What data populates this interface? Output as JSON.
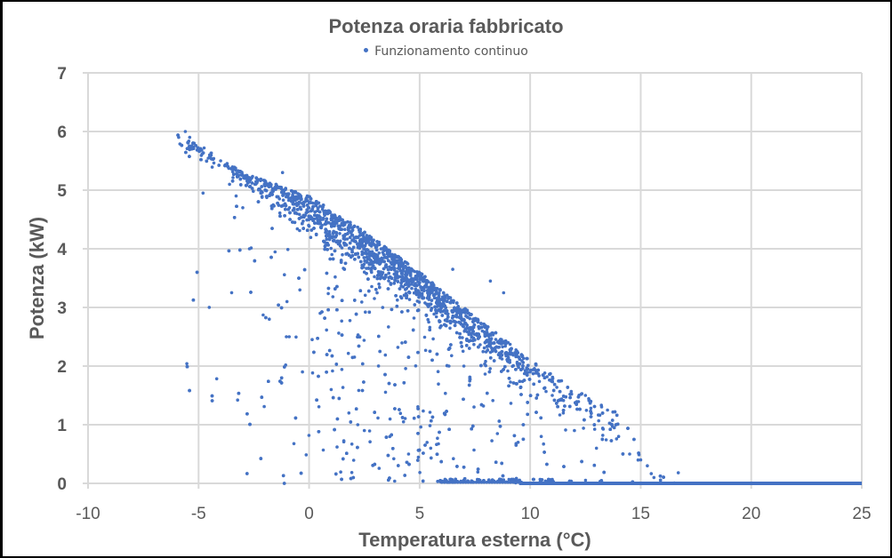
{
  "chart": {
    "title": "Potenza oraria fabbricato",
    "legend_label": "Funzionamento continuo",
    "x_axis_title": "Temperatura esterna (°C)",
    "y_axis_title": "Potenza (kW)",
    "x_ticks": [
      "-10",
      "-5",
      "0",
      "5",
      "10",
      "15",
      "20",
      "25"
    ],
    "y_ticks": [
      "0",
      "1",
      "2",
      "3",
      "4",
      "5",
      "6",
      "7"
    ],
    "series_color": "#4472c4",
    "grid_color": "#d9d9d9",
    "text_color": "#595959"
  },
  "chart_data": {
    "type": "scatter",
    "title": "Potenza oraria fabbricato",
    "xlabel": "Temperatura esterna (°C)",
    "ylabel": "Potenza (kW)",
    "xlim": [
      -10,
      25
    ],
    "ylim": [
      0,
      7
    ],
    "x_ticks": [
      -10,
      -5,
      0,
      5,
      10,
      15,
      20,
      25
    ],
    "y_ticks": [
      0,
      1,
      2,
      3,
      4,
      5,
      6,
      7
    ],
    "grid": true,
    "legend_position": "top",
    "series": [
      {
        "name": "Funzionamento continuo",
        "color": "#4472c4",
        "marker": "circle",
        "upper_envelope": [
          {
            "x": -5.8,
            "y": 6.0
          },
          {
            "x": -3.0,
            "y": 5.3
          },
          {
            "x": 0.0,
            "y": 4.9
          },
          {
            "x": 2.5,
            "y": 4.3
          },
          {
            "x": 5.0,
            "y": 3.6
          },
          {
            "x": 8.0,
            "y": 2.7
          },
          {
            "x": 10.0,
            "y": 2.1
          },
          {
            "x": 12.5,
            "y": 1.5
          },
          {
            "x": 14.0,
            "y": 1.2
          },
          {
            "x": 15.5,
            "y": 0.3
          },
          {
            "x": 16.7,
            "y": 0.2
          }
        ],
        "trend_line": [
          {
            "x": -6.0,
            "y": 5.9
          },
          {
            "x": 0.0,
            "y": 4.4
          },
          {
            "x": 5.0,
            "y": 3.1
          },
          {
            "x": 10.0,
            "y": 1.7
          },
          {
            "x": 14.0,
            "y": 0.7
          }
        ],
        "zero_baseline": {
          "x_start": 6.0,
          "x_end": 25.0,
          "y": 0.0
        },
        "sample_points": [
          {
            "x": -5.9,
            "y": 5.9
          },
          {
            "x": -5.6,
            "y": 6.0
          },
          {
            "x": -5.4,
            "y": 5.9
          },
          {
            "x": -5.2,
            "y": 5.8
          },
          {
            "x": -5.0,
            "y": 5.7
          },
          {
            "x": -4.8,
            "y": 4.95
          },
          {
            "x": -4.5,
            "y": 5.6
          },
          {
            "x": -4.0,
            "y": 5.5
          },
          {
            "x": -3.6,
            "y": 5.1
          },
          {
            "x": -3.3,
            "y": 4.9
          },
          {
            "x": -3.0,
            "y": 4.7
          },
          {
            "x": -2.7,
            "y": 4.0
          },
          {
            "x": -2.0,
            "y": 5.1
          },
          {
            "x": -1.8,
            "y": 2.8
          },
          {
            "x": -1.2,
            "y": 5.3
          },
          {
            "x": -1.0,
            "y": 3.1
          },
          {
            "x": -0.9,
            "y": 2.5
          },
          {
            "x": -0.3,
            "y": 1.9
          },
          {
            "x": 0.0,
            "y": 4.5
          },
          {
            "x": 0.5,
            "y": 2.9
          },
          {
            "x": 1.0,
            "y": 1.6
          },
          {
            "x": 1.2,
            "y": 4.2
          },
          {
            "x": 1.8,
            "y": 1.2
          },
          {
            "x": 2.2,
            "y": 1.0
          },
          {
            "x": 2.5,
            "y": 0.9
          },
          {
            "x": 2.8,
            "y": 3.8
          },
          {
            "x": 4.0,
            "y": 3.5
          },
          {
            "x": 4.5,
            "y": 0.5
          },
          {
            "x": 5.5,
            "y": 0.6
          },
          {
            "x": 6.0,
            "y": 3.0
          },
          {
            "x": 6.5,
            "y": 3.65
          },
          {
            "x": 7.0,
            "y": 2.0
          },
          {
            "x": 7.5,
            "y": 2.8
          },
          {
            "x": 8.2,
            "y": 3.45
          },
          {
            "x": 8.8,
            "y": 3.25
          },
          {
            "x": 9.0,
            "y": 2.4
          },
          {
            "x": 10.0,
            "y": 1.9
          },
          {
            "x": 10.5,
            "y": 0.8
          },
          {
            "x": 11.0,
            "y": 1.5
          },
          {
            "x": 11.5,
            "y": 1.2
          },
          {
            "x": 12.0,
            "y": 0.9
          },
          {
            "x": 12.5,
            "y": 1.5
          },
          {
            "x": 13.0,
            "y": 0.6
          },
          {
            "x": 13.5,
            "y": 1.25
          },
          {
            "x": 14.0,
            "y": 0.8
          },
          {
            "x": 14.5,
            "y": 0.5
          },
          {
            "x": 15.0,
            "y": 0.4
          },
          {
            "x": 15.3,
            "y": 0.3
          },
          {
            "x": 15.6,
            "y": 0.1
          },
          {
            "x": 16.7,
            "y": 0.18
          }
        ],
        "approx_point_count": 8760
      }
    ]
  }
}
